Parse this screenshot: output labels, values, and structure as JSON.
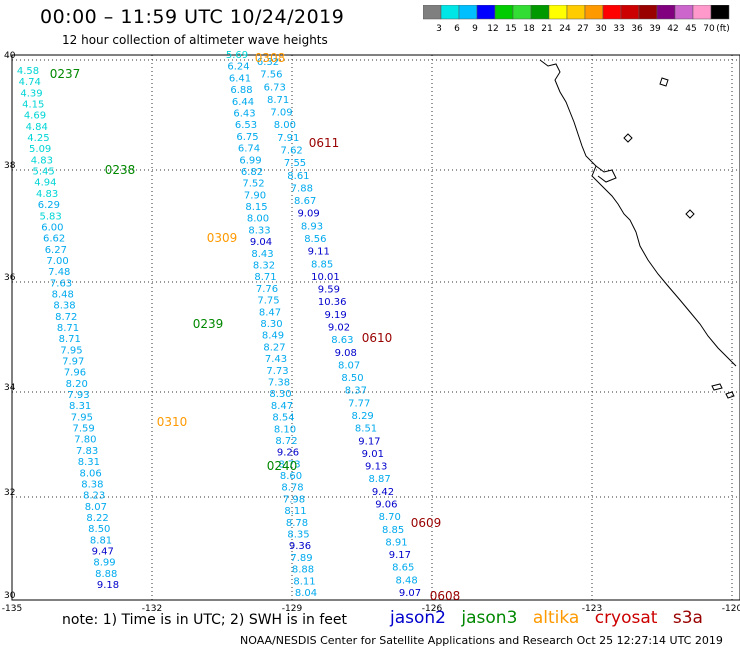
{
  "header": {
    "title": "00:00 – 11:59 UTC 10/24/2019",
    "subtitle": "12 hour collection of altimeter wave heights"
  },
  "colorbar": {
    "labels": [
      "3",
      "6",
      "9",
      "12",
      "15",
      "18",
      "21",
      "24",
      "27",
      "30",
      "33",
      "36",
      "39",
      "42",
      "45",
      "70"
    ],
    "unit": "(ft)",
    "colors": [
      "#7f7f7f",
      "#00e5e5",
      "#00bfff",
      "#0000ff",
      "#00cc00",
      "#33dd33",
      "#009900",
      "#ffff00",
      "#ffcc00",
      "#ff9900",
      "#ff0000",
      "#cc0000",
      "#990000",
      "#800080",
      "#cc66cc",
      "#ff99cc",
      "#000000"
    ]
  },
  "axes": {
    "lat_labels": [
      "40",
      "38",
      "36",
      "34",
      "32",
      "30"
    ],
    "lon_labels": [
      "-135",
      "-132",
      "-129",
      "-126",
      "-123",
      "-120"
    ]
  },
  "satellite_colors": {
    "jason2": "#0000cc",
    "jason3": "#008800",
    "altika": "#ff9900",
    "cryosat": "#cc0000",
    "s3a": "#990000"
  },
  "tracks": [
    {
      "id": "t1",
      "values": [
        "4.58",
        "4.74",
        "4.39",
        "4.15",
        "4.69",
        "4.84",
        "4.25",
        "5.09",
        "4.83",
        "5.45",
        "4.94",
        "4.83",
        "6.29",
        "5.83",
        "6.00",
        "6.62",
        "6.27",
        "7.00",
        "7.48",
        "7.63",
        "8.48",
        "8.38",
        "8.72",
        "8.71",
        "8.71",
        "7.95",
        "7.97",
        "7.96",
        "8.20",
        "7.93",
        "8.31",
        "7.95",
        "7.59",
        "7.80",
        "7.83",
        "8.31",
        "8.06",
        "8.38",
        "8.23",
        "8.07",
        "8.22",
        "8.50",
        "8.81",
        "9.47",
        "8.99",
        "8.88",
        "9.18"
      ]
    },
    {
      "id": "t2",
      "values": [
        "5.69",
        "6.24",
        "6.41",
        "6.88",
        "6.44",
        "6.43",
        "6.53",
        "6.75",
        "6.74",
        "6.99",
        "6.82",
        "7.52",
        "7.90",
        "8.15",
        "8.00",
        "8.33",
        "9.04",
        "8.43",
        "8.32",
        "8.71",
        "7.76",
        "7.75",
        "8.47",
        "8.30",
        "8.49",
        "8.27",
        "7.43",
        "7.73",
        "7.38",
        "8.30",
        "8.47",
        "8.54",
        "8.10",
        "8.72",
        "9.26",
        "8.73",
        "8.60",
        "8.78",
        "7.98",
        "8.11",
        "8.78",
        "8.35",
        "9.36",
        "7.89",
        "8.88",
        "8.11",
        "8.04"
      ]
    },
    {
      "id": "t3",
      "values": [
        "6.32",
        "7.56",
        "6.73",
        "8.71",
        "7.09",
        "8.00",
        "7.91",
        "7.62",
        "7.55",
        "8.61",
        "7.88",
        "8.67",
        "9.09",
        "8.93",
        "8.56",
        "9.11",
        "8.85",
        "10.01",
        "9.59",
        "10.36",
        "9.19",
        "9.02",
        "8.63",
        "9.08",
        "8.07",
        "8.50",
        "8.37",
        "7.77",
        "8.29",
        "8.51",
        "9.17",
        "9.01",
        "9.13",
        "8.87",
        "9.42",
        "9.06",
        "8.70",
        "8.85",
        "8.91",
        "9.17",
        "8.65",
        "8.48",
        "9.07"
      ]
    }
  ],
  "pass_labels": [
    {
      "text": "0237",
      "sat": "jason3"
    },
    {
      "text": "0238",
      "sat": "jason3"
    },
    {
      "text": "0239",
      "sat": "jason3"
    },
    {
      "text": "0240",
      "sat": "jason3"
    },
    {
      "text": "0308",
      "sat": "altika"
    },
    {
      "text": "0309",
      "sat": "altika"
    },
    {
      "text": "0310",
      "sat": "altika"
    },
    {
      "text": "0611",
      "sat": "s3a"
    },
    {
      "text": "0610",
      "sat": "s3a"
    },
    {
      "text": "0609",
      "sat": "s3a"
    },
    {
      "text": "0608",
      "sat": "s3a"
    }
  ],
  "footer": {
    "note": "note: 1) Time is in UTC; 2) SWH is in feet",
    "legend": [
      "jason2",
      "jason3",
      "altika",
      "cryosat",
      "s3a"
    ],
    "credit": "NOAA/NESDIS Center for Satellite Applications and Research    Oct 25 12:27:14 UTC 2019"
  }
}
